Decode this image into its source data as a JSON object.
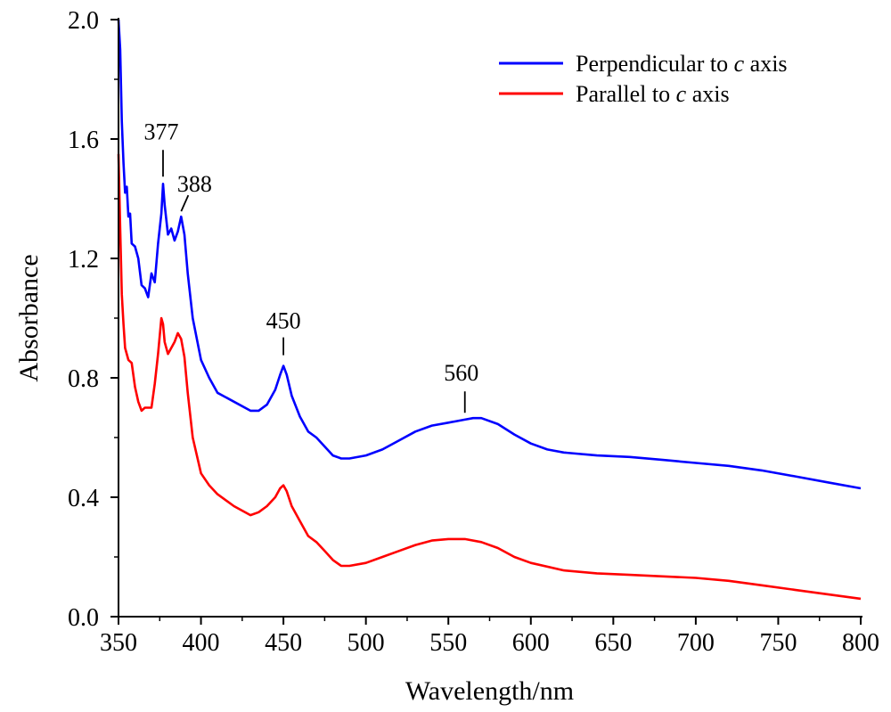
{
  "chart_data": {
    "type": "line",
    "title": "",
    "xlabel": "Wavelength/nm",
    "ylabel": "Absorbance",
    "xlim": [
      350,
      800
    ],
    "ylim": [
      0.0,
      2.0
    ],
    "x_ticks": [
      "350",
      "400",
      "450",
      "500",
      "550",
      "600",
      "650",
      "700",
      "750",
      "800"
    ],
    "y_ticks": [
      "0.0",
      "0.4",
      "0.8",
      "1.2",
      "1.6",
      "2.0"
    ],
    "legend_position": "top-right",
    "series": [
      {
        "name": "Perpendicular to c axis",
        "color": "#0000ff",
        "x": [
          350,
          351,
          352,
          353,
          354,
          355,
          356,
          357,
          358,
          360,
          362,
          364,
          366,
          368,
          370,
          372,
          374,
          376,
          377,
          378,
          380,
          382,
          384,
          386,
          388,
          390,
          392,
          395,
          400,
          405,
          410,
          420,
          430,
          435,
          440,
          445,
          448,
          450,
          452,
          455,
          460,
          465,
          470,
          475,
          480,
          485,
          490,
          500,
          510,
          520,
          530,
          540,
          550,
          560,
          565,
          570,
          580,
          590,
          600,
          610,
          620,
          640,
          660,
          680,
          700,
          720,
          740,
          760,
          780,
          800
        ],
        "y": [
          2.0,
          1.9,
          1.66,
          1.52,
          1.42,
          1.44,
          1.34,
          1.35,
          1.25,
          1.24,
          1.2,
          1.11,
          1.1,
          1.07,
          1.15,
          1.12,
          1.25,
          1.35,
          1.45,
          1.38,
          1.28,
          1.3,
          1.26,
          1.29,
          1.34,
          1.28,
          1.15,
          1.0,
          0.86,
          0.8,
          0.75,
          0.72,
          0.69,
          0.69,
          0.71,
          0.76,
          0.81,
          0.84,
          0.81,
          0.74,
          0.67,
          0.62,
          0.6,
          0.57,
          0.54,
          0.53,
          0.53,
          0.54,
          0.56,
          0.59,
          0.62,
          0.64,
          0.65,
          0.66,
          0.665,
          0.665,
          0.645,
          0.61,
          0.58,
          0.56,
          0.55,
          0.54,
          0.535,
          0.525,
          0.515,
          0.505,
          0.49,
          0.47,
          0.45,
          0.43
        ]
      },
      {
        "name": "Parallel to c axis",
        "color": "#ff0000",
        "x": [
          350,
          351,
          352,
          353,
          354,
          356,
          358,
          360,
          362,
          364,
          366,
          368,
          370,
          372,
          374,
          376,
          377,
          378,
          380,
          382,
          384,
          386,
          388,
          390,
          392,
          395,
          400,
          405,
          410,
          420,
          430,
          435,
          440,
          445,
          448,
          450,
          452,
          455,
          460,
          465,
          470,
          475,
          480,
          485,
          490,
          500,
          510,
          520,
          530,
          540,
          550,
          560,
          570,
          580,
          590,
          600,
          620,
          640,
          660,
          680,
          700,
          720,
          740,
          760,
          780,
          800
        ],
        "y": [
          1.55,
          1.3,
          1.08,
          0.98,
          0.9,
          0.86,
          0.85,
          0.77,
          0.72,
          0.69,
          0.7,
          0.7,
          0.7,
          0.78,
          0.88,
          1.0,
          0.98,
          0.92,
          0.88,
          0.9,
          0.92,
          0.95,
          0.93,
          0.87,
          0.75,
          0.6,
          0.48,
          0.44,
          0.41,
          0.37,
          0.34,
          0.35,
          0.37,
          0.4,
          0.43,
          0.44,
          0.42,
          0.37,
          0.32,
          0.27,
          0.25,
          0.22,
          0.19,
          0.17,
          0.17,
          0.18,
          0.2,
          0.22,
          0.24,
          0.255,
          0.26,
          0.26,
          0.25,
          0.23,
          0.2,
          0.18,
          0.155,
          0.145,
          0.14,
          0.135,
          0.13,
          0.12,
          0.105,
          0.09,
          0.075,
          0.06
        ]
      }
    ],
    "annotations": [
      {
        "text": "377",
        "x": 377,
        "y": 1.45
      },
      {
        "text": "388",
        "x": 388,
        "y": 1.34
      },
      {
        "text": "450",
        "x": 450,
        "y": 0.84
      },
      {
        "text": "560",
        "x": 560,
        "y": 0.665
      }
    ]
  }
}
